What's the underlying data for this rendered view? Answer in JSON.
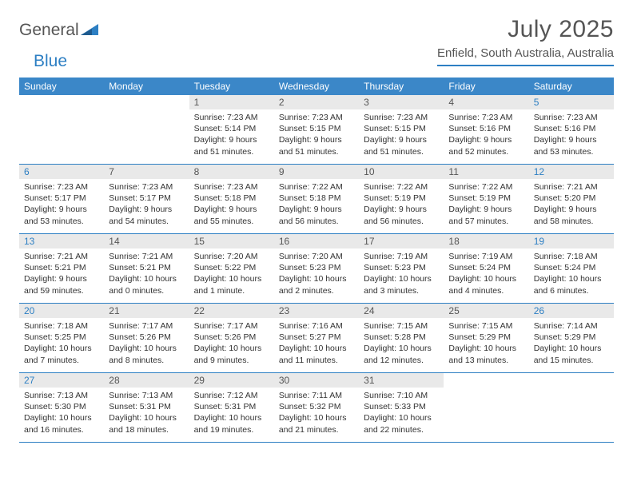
{
  "logo": {
    "word1": "General",
    "word2": "Blue"
  },
  "title": "July 2025",
  "location": "Enfield, South Australia, Australia",
  "colors": {
    "header_bg": "#3b87c8",
    "accent": "#2d7fc3",
    "daynum_bg": "#e9e9e9",
    "text": "#555555"
  },
  "fonts": {
    "title_size": 30,
    "location_size": 15,
    "header_size": 12,
    "daynum_size": 12,
    "body_size": 10.5
  },
  "day_names": [
    "Sunday",
    "Monday",
    "Tuesday",
    "Wednesday",
    "Thursday",
    "Friday",
    "Saturday"
  ],
  "weeks": [
    [
      null,
      null,
      {
        "n": "1",
        "sr": "Sunrise: 7:23 AM",
        "ss": "Sunset: 5:14 PM",
        "d1": "Daylight: 9 hours",
        "d2": "and 51 minutes."
      },
      {
        "n": "2",
        "sr": "Sunrise: 7:23 AM",
        "ss": "Sunset: 5:15 PM",
        "d1": "Daylight: 9 hours",
        "d2": "and 51 minutes."
      },
      {
        "n": "3",
        "sr": "Sunrise: 7:23 AM",
        "ss": "Sunset: 5:15 PM",
        "d1": "Daylight: 9 hours",
        "d2": "and 51 minutes."
      },
      {
        "n": "4",
        "sr": "Sunrise: 7:23 AM",
        "ss": "Sunset: 5:16 PM",
        "d1": "Daylight: 9 hours",
        "d2": "and 52 minutes."
      },
      {
        "n": "5",
        "sr": "Sunrise: 7:23 AM",
        "ss": "Sunset: 5:16 PM",
        "d1": "Daylight: 9 hours",
        "d2": "and 53 minutes."
      }
    ],
    [
      {
        "n": "6",
        "sr": "Sunrise: 7:23 AM",
        "ss": "Sunset: 5:17 PM",
        "d1": "Daylight: 9 hours",
        "d2": "and 53 minutes."
      },
      {
        "n": "7",
        "sr": "Sunrise: 7:23 AM",
        "ss": "Sunset: 5:17 PM",
        "d1": "Daylight: 9 hours",
        "d2": "and 54 minutes."
      },
      {
        "n": "8",
        "sr": "Sunrise: 7:23 AM",
        "ss": "Sunset: 5:18 PM",
        "d1": "Daylight: 9 hours",
        "d2": "and 55 minutes."
      },
      {
        "n": "9",
        "sr": "Sunrise: 7:22 AM",
        "ss": "Sunset: 5:18 PM",
        "d1": "Daylight: 9 hours",
        "d2": "and 56 minutes."
      },
      {
        "n": "10",
        "sr": "Sunrise: 7:22 AM",
        "ss": "Sunset: 5:19 PM",
        "d1": "Daylight: 9 hours",
        "d2": "and 56 minutes."
      },
      {
        "n": "11",
        "sr": "Sunrise: 7:22 AM",
        "ss": "Sunset: 5:19 PM",
        "d1": "Daylight: 9 hours",
        "d2": "and 57 minutes."
      },
      {
        "n": "12",
        "sr": "Sunrise: 7:21 AM",
        "ss": "Sunset: 5:20 PM",
        "d1": "Daylight: 9 hours",
        "d2": "and 58 minutes."
      }
    ],
    [
      {
        "n": "13",
        "sr": "Sunrise: 7:21 AM",
        "ss": "Sunset: 5:21 PM",
        "d1": "Daylight: 9 hours",
        "d2": "and 59 minutes."
      },
      {
        "n": "14",
        "sr": "Sunrise: 7:21 AM",
        "ss": "Sunset: 5:21 PM",
        "d1": "Daylight: 10 hours",
        "d2": "and 0 minutes."
      },
      {
        "n": "15",
        "sr": "Sunrise: 7:20 AM",
        "ss": "Sunset: 5:22 PM",
        "d1": "Daylight: 10 hours",
        "d2": "and 1 minute."
      },
      {
        "n": "16",
        "sr": "Sunrise: 7:20 AM",
        "ss": "Sunset: 5:23 PM",
        "d1": "Daylight: 10 hours",
        "d2": "and 2 minutes."
      },
      {
        "n": "17",
        "sr": "Sunrise: 7:19 AM",
        "ss": "Sunset: 5:23 PM",
        "d1": "Daylight: 10 hours",
        "d2": "and 3 minutes."
      },
      {
        "n": "18",
        "sr": "Sunrise: 7:19 AM",
        "ss": "Sunset: 5:24 PM",
        "d1": "Daylight: 10 hours",
        "d2": "and 4 minutes."
      },
      {
        "n": "19",
        "sr": "Sunrise: 7:18 AM",
        "ss": "Sunset: 5:24 PM",
        "d1": "Daylight: 10 hours",
        "d2": "and 6 minutes."
      }
    ],
    [
      {
        "n": "20",
        "sr": "Sunrise: 7:18 AM",
        "ss": "Sunset: 5:25 PM",
        "d1": "Daylight: 10 hours",
        "d2": "and 7 minutes."
      },
      {
        "n": "21",
        "sr": "Sunrise: 7:17 AM",
        "ss": "Sunset: 5:26 PM",
        "d1": "Daylight: 10 hours",
        "d2": "and 8 minutes."
      },
      {
        "n": "22",
        "sr": "Sunrise: 7:17 AM",
        "ss": "Sunset: 5:26 PM",
        "d1": "Daylight: 10 hours",
        "d2": "and 9 minutes."
      },
      {
        "n": "23",
        "sr": "Sunrise: 7:16 AM",
        "ss": "Sunset: 5:27 PM",
        "d1": "Daylight: 10 hours",
        "d2": "and 11 minutes."
      },
      {
        "n": "24",
        "sr": "Sunrise: 7:15 AM",
        "ss": "Sunset: 5:28 PM",
        "d1": "Daylight: 10 hours",
        "d2": "and 12 minutes."
      },
      {
        "n": "25",
        "sr": "Sunrise: 7:15 AM",
        "ss": "Sunset: 5:29 PM",
        "d1": "Daylight: 10 hours",
        "d2": "and 13 minutes."
      },
      {
        "n": "26",
        "sr": "Sunrise: 7:14 AM",
        "ss": "Sunset: 5:29 PM",
        "d1": "Daylight: 10 hours",
        "d2": "and 15 minutes."
      }
    ],
    [
      {
        "n": "27",
        "sr": "Sunrise: 7:13 AM",
        "ss": "Sunset: 5:30 PM",
        "d1": "Daylight: 10 hours",
        "d2": "and 16 minutes."
      },
      {
        "n": "28",
        "sr": "Sunrise: 7:13 AM",
        "ss": "Sunset: 5:31 PM",
        "d1": "Daylight: 10 hours",
        "d2": "and 18 minutes."
      },
      {
        "n": "29",
        "sr": "Sunrise: 7:12 AM",
        "ss": "Sunset: 5:31 PM",
        "d1": "Daylight: 10 hours",
        "d2": "and 19 minutes."
      },
      {
        "n": "30",
        "sr": "Sunrise: 7:11 AM",
        "ss": "Sunset: 5:32 PM",
        "d1": "Daylight: 10 hours",
        "d2": "and 21 minutes."
      },
      {
        "n": "31",
        "sr": "Sunrise: 7:10 AM",
        "ss": "Sunset: 5:33 PM",
        "d1": "Daylight: 10 hours",
        "d2": "and 22 minutes."
      },
      null,
      null
    ]
  ]
}
